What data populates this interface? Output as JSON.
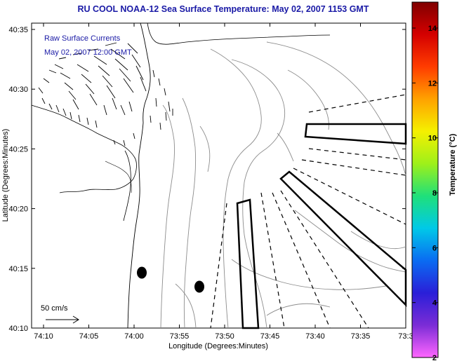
{
  "title": "RU COOL  NOAA-12  Sea Surface Temperature:  May 02, 2007 1153 GMT",
  "legend": {
    "line1": "Raw Surface Currents",
    "line2": "May 02, 2007 12:00 GMT"
  },
  "scale_label": "50 cm/s",
  "x_axis": {
    "label": "Longitude (Degrees:Minutes)",
    "ticks": [
      "74:10",
      "74:05",
      "74:00",
      "73:55",
      "73:50",
      "73:45",
      "73:40",
      "73:35",
      "73:3"
    ]
  },
  "y_axis": {
    "label": "Latitude (Degrees:Minutes)",
    "ticks": [
      "40:35",
      "40:30",
      "40:25",
      "40:20",
      "40:15",
      "40:10"
    ]
  },
  "colorbar": {
    "label": "Temperature (°C)",
    "ticks": [
      "14",
      "12",
      "10",
      "8",
      "6",
      "4",
      "2"
    ],
    "colors": [
      "#ff66ff",
      "#7b2cd6",
      "#2a1fd8",
      "#0a6cf2",
      "#00c9e8",
      "#1fe07a",
      "#9ef01a",
      "#f5f000",
      "#ffa200",
      "#ff3c00",
      "#d40000",
      "#800000"
    ]
  },
  "markers": [
    "mooring-1",
    "mooring-2"
  ]
}
